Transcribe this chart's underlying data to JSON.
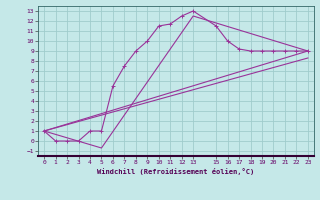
{
  "xlabel": "Windchill (Refroidissement éolien,°C)",
  "bg_color": "#c5e8e8",
  "grid_color": "#a0cccc",
  "line_color": "#993399",
  "plot_bg": "#c5e8e8",
  "xlim": [
    -0.5,
    23.5
  ],
  "ylim": [
    -1.5,
    13.5
  ],
  "xticks": [
    0,
    1,
    2,
    3,
    4,
    5,
    6,
    7,
    8,
    9,
    10,
    11,
    12,
    13,
    15,
    16,
    17,
    18,
    19,
    20,
    21,
    22,
    23
  ],
  "yticks": [
    -1,
    0,
    1,
    2,
    3,
    4,
    5,
    6,
    7,
    8,
    9,
    10,
    11,
    12,
    13
  ],
  "line1_x": [
    0,
    1,
    2,
    3,
    4,
    5,
    6,
    7,
    8,
    9,
    10,
    11,
    12,
    13,
    15,
    16,
    17,
    18,
    19,
    20,
    21,
    22,
    23
  ],
  "line1_y": [
    1.0,
    0.0,
    0.0,
    0.0,
    1.0,
    1.0,
    5.5,
    7.5,
    9.0,
    10.0,
    11.5,
    11.7,
    12.5,
    13.0,
    11.5,
    10.0,
    9.2,
    9.0,
    9.0,
    9.0,
    9.0,
    9.0,
    9.0
  ],
  "line2_x": [
    0,
    5,
    13,
    23
  ],
  "line2_y": [
    1.0,
    -0.7,
    12.5,
    9.0
  ],
  "line3_x": [
    0,
    23
  ],
  "line3_y": [
    1.0,
    9.0
  ],
  "line4_x": [
    0,
    23
  ],
  "line4_y": [
    1.0,
    8.3
  ]
}
